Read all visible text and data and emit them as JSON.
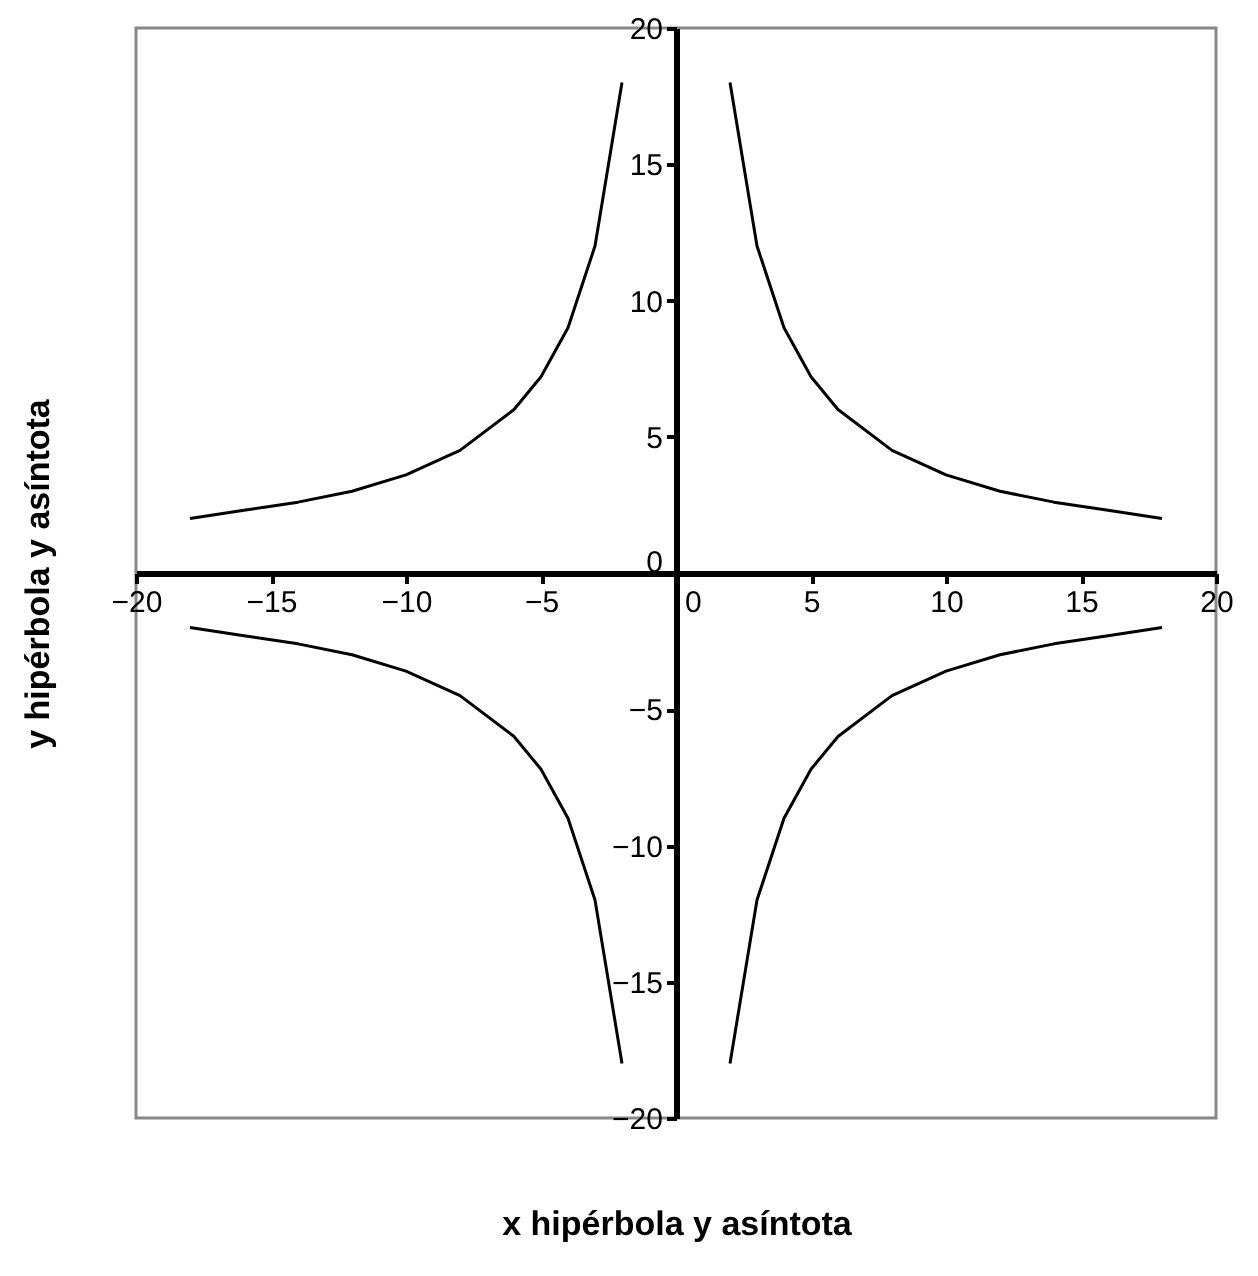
{
  "chart_data": {
    "type": "line",
    "xlabel": "x hipérbola y asíntota",
    "ylabel": "y hipérbola y asíntota",
    "xlim": [
      -20,
      20
    ],
    "ylim": [
      -20,
      20
    ],
    "xticks": [
      -20,
      -15,
      -10,
      -5,
      0,
      5,
      10,
      15,
      20
    ],
    "yticks": [
      -20,
      -15,
      -10,
      -5,
      0,
      5,
      10,
      15,
      20
    ],
    "grid": false,
    "marker": "none",
    "line_style": "solid",
    "series": [
      {
        "color": "#000000",
        "x": [
          2,
          3,
          4,
          5,
          6,
          8,
          10,
          12,
          14,
          16,
          18
        ],
        "values": [
          18,
          12,
          9,
          7.2,
          6,
          4.5,
          3.6,
          3,
          2.6,
          2.3,
          2
        ]
      },
      {
        "color": "#000000",
        "x": [
          -18,
          -16,
          -14,
          -12,
          -10,
          -8,
          -6,
          -5,
          -4,
          -3,
          -2
        ],
        "values": [
          2,
          2.3,
          2.6,
          3,
          3.6,
          4.5,
          6,
          7.2,
          9,
          12,
          18
        ]
      },
      {
        "color": "#000000",
        "x": [
          -18,
          -16,
          -14,
          -12,
          -10,
          -8,
          -6,
          -5,
          -4,
          -3,
          -2
        ],
        "values": [
          -2,
          -2.3,
          -2.6,
          -3,
          -3.6,
          -4.5,
          -6,
          -7.2,
          -9,
          -12,
          -18
        ]
      },
      {
        "color": "#000000",
        "x": [
          2,
          3,
          4,
          5,
          6,
          8,
          10,
          12,
          14,
          16,
          18
        ],
        "values": [
          -18,
          -12,
          -9,
          -7.2,
          -6,
          -4.5,
          -3.6,
          -3,
          -2.6,
          -2.3,
          -2
        ]
      }
    ]
  }
}
